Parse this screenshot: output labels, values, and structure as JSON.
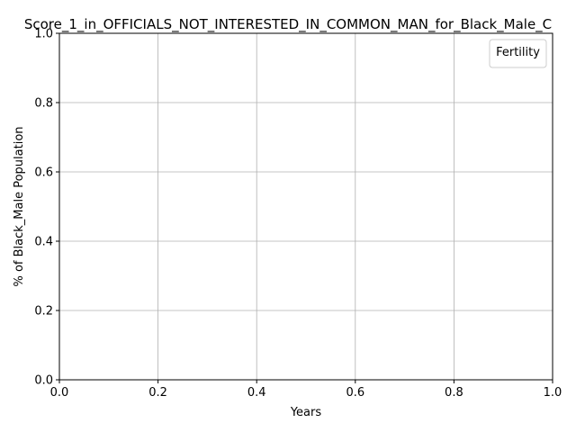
{
  "chart_data": {
    "type": "line",
    "title": "Score_1_in_OFFICIALS_NOT_INTERESTED_IN_COMMON_MAN_for_Black_Male_C",
    "xlabel": "Years",
    "ylabel": "% of Black_Male Population",
    "xlim": [
      0.0,
      1.0
    ],
    "ylim": [
      0.0,
      1.0
    ],
    "x_ticks": [
      "0.0",
      "0.2",
      "0.4",
      "0.6",
      "0.8",
      "1.0"
    ],
    "y_ticks": [
      "0.0",
      "0.2",
      "0.4",
      "0.6",
      "0.8",
      "1.0"
    ],
    "grid": true,
    "legend": {
      "title": "Fertility",
      "placement": "top-right",
      "entries": []
    },
    "series": []
  }
}
